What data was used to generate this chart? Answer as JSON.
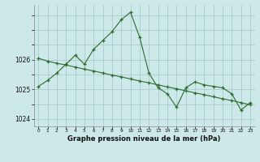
{
  "title": "Graphe pression niveau de la mer (hPa)",
  "bg_color": "#cce8e8",
  "grid_color": "#aacccc",
  "line_color": "#2d6b2d",
  "x_labels": [
    "0",
    "1",
    "2",
    "3",
    "4",
    "5",
    "6",
    "7",
    "8",
    "9",
    "10",
    "11",
    "12",
    "13",
    "14",
    "15",
    "16",
    "17",
    "18",
    "19",
    "20",
    "21",
    "22",
    "23"
  ],
  "hours": [
    0,
    1,
    2,
    3,
    4,
    5,
    6,
    7,
    8,
    9,
    10,
    11,
    12,
    13,
    14,
    15,
    16,
    17,
    18,
    19,
    20,
    21,
    22,
    23
  ],
  "series1": [
    1025.1,
    1025.3,
    1025.55,
    1025.85,
    1026.15,
    1025.85,
    1026.35,
    1026.65,
    1026.95,
    1027.35,
    1027.6,
    1026.75,
    1025.55,
    1025.05,
    1024.85,
    1024.4,
    1025.05,
    1025.25,
    1025.15,
    1025.1,
    1025.05,
    1024.85,
    1024.3,
    1024.55
  ],
  "series2": [
    1026.05,
    1025.95,
    1025.88,
    1025.82,
    1025.75,
    1025.68,
    1025.62,
    1025.55,
    1025.48,
    1025.42,
    1025.35,
    1025.28,
    1025.22,
    1025.15,
    1025.08,
    1025.02,
    1024.95,
    1024.88,
    1024.82,
    1024.75,
    1024.68,
    1024.62,
    1024.55,
    1024.48
  ],
  "yticks": [
    1024,
    1025,
    1026
  ],
  "ylim": [
    1023.75,
    1027.85
  ],
  "xlim": [
    -0.5,
    23.5
  ]
}
